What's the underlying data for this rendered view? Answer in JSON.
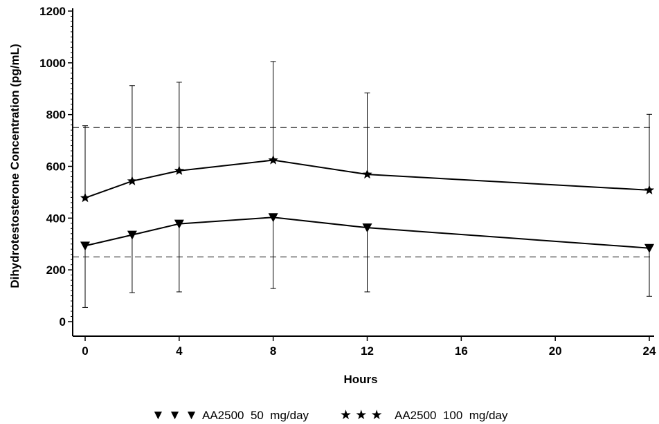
{
  "chart_data": {
    "type": "line",
    "xlabel": "Hours",
    "ylabel": "Dihydrotestosterone  Concentration  (pg/mL)",
    "xlim": [
      0,
      24
    ],
    "ylim": [
      0,
      1200
    ],
    "x_ticks": [
      0,
      4,
      8,
      12,
      16,
      20,
      24
    ],
    "y_ticks": [
      0,
      200,
      400,
      600,
      800,
      1000,
      1200
    ],
    "grid": false,
    "reference_lines": [
      250,
      750
    ],
    "legend_position": "bottom",
    "series": [
      {
        "name": "AA2500  50  mg/day",
        "marker": "triangle-down",
        "x": [
          0,
          2,
          4,
          8,
          12,
          24
        ],
        "y": [
          293,
          335,
          378,
          403,
          363,
          284
        ],
        "error_low": [
          55,
          112,
          115,
          128,
          115,
          98
        ],
        "error_high": null
      },
      {
        "name": "AA2500  100  mg/day",
        "marker": "star",
        "x": [
          0,
          2,
          4,
          8,
          12,
          24
        ],
        "y": [
          478,
          543,
          583,
          624,
          569,
          508
        ],
        "error_low": null,
        "error_high": [
          757,
          912,
          925,
          1005,
          884,
          801
        ]
      }
    ]
  },
  "legend": {
    "items": [
      {
        "label": "AA2500  50  mg/day",
        "symbol": "▼ ▼ ▼"
      },
      {
        "label": "AA2500  100  mg/day",
        "symbol": "★ ★ ★"
      }
    ]
  }
}
